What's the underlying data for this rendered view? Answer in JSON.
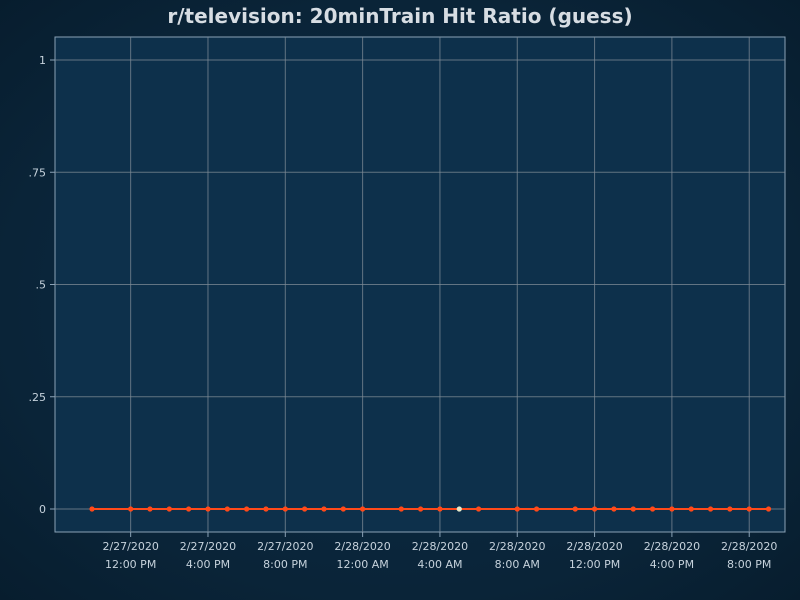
{
  "chart_data": {
    "type": "line",
    "title": "r/television: 20minTrain Hit Ratio (guess)",
    "xlabel": "",
    "ylabel": "",
    "ylim": [
      0,
      1
    ],
    "y_ticks": [
      "0",
      ".25",
      ".5",
      ".75",
      "1"
    ],
    "y_tick_values": [
      0,
      0.25,
      0.5,
      0.75,
      1
    ],
    "x_ticks": [
      {
        "date": "2/27/2020",
        "time": "12:00 PM",
        "hours": 12
      },
      {
        "date": "2/27/2020",
        "time": "4:00 PM",
        "hours": 16
      },
      {
        "date": "2/27/2020",
        "time": "8:00 PM",
        "hours": 20
      },
      {
        "date": "2/28/2020",
        "time": "12:00 AM",
        "hours": 24
      },
      {
        "date": "2/28/2020",
        "time": "4:00 AM",
        "hours": 28
      },
      {
        "date": "2/28/2020",
        "time": "8:00 AM",
        "hours": 32
      },
      {
        "date": "2/28/2020",
        "time": "12:00 PM",
        "hours": 36
      },
      {
        "date": "2/28/2020",
        "time": "4:00 PM",
        "hours": 40
      },
      {
        "date": "2/28/2020",
        "time": "8:00 PM",
        "hours": 44
      }
    ],
    "xlim_hours": [
      9,
      47
    ],
    "grid": true,
    "series": [
      {
        "color": "#ff4a1a",
        "points": [
          [
            10.0,
            0
          ],
          [
            12.0,
            0
          ],
          [
            13.0,
            0
          ],
          [
            14.0,
            0
          ],
          [
            15.0,
            0
          ],
          [
            16.0,
            0
          ],
          [
            17.0,
            0
          ],
          [
            18.0,
            0
          ],
          [
            19.0,
            0
          ],
          [
            20.0,
            0
          ],
          [
            21.0,
            0
          ],
          [
            22.0,
            0
          ],
          [
            23.0,
            0
          ],
          [
            24.0,
            0
          ],
          [
            26.0,
            0
          ],
          [
            27.0,
            0
          ],
          [
            28.0,
            0
          ],
          [
            29.0,
            0
          ],
          [
            30.0,
            0
          ],
          [
            32.0,
            0
          ],
          [
            33.0,
            0
          ],
          [
            35.0,
            0
          ],
          [
            36.0,
            0
          ],
          [
            37.0,
            0
          ],
          [
            38.0,
            0
          ],
          [
            39.0,
            0
          ],
          [
            40.0,
            0
          ],
          [
            41.0,
            0
          ],
          [
            42.0,
            0
          ],
          [
            43.0,
            0
          ],
          [
            44.0,
            0
          ],
          [
            45.0,
            0
          ]
        ],
        "highlight_x": 29.0,
        "highlight_color": "#e8e8c8"
      }
    ]
  }
}
